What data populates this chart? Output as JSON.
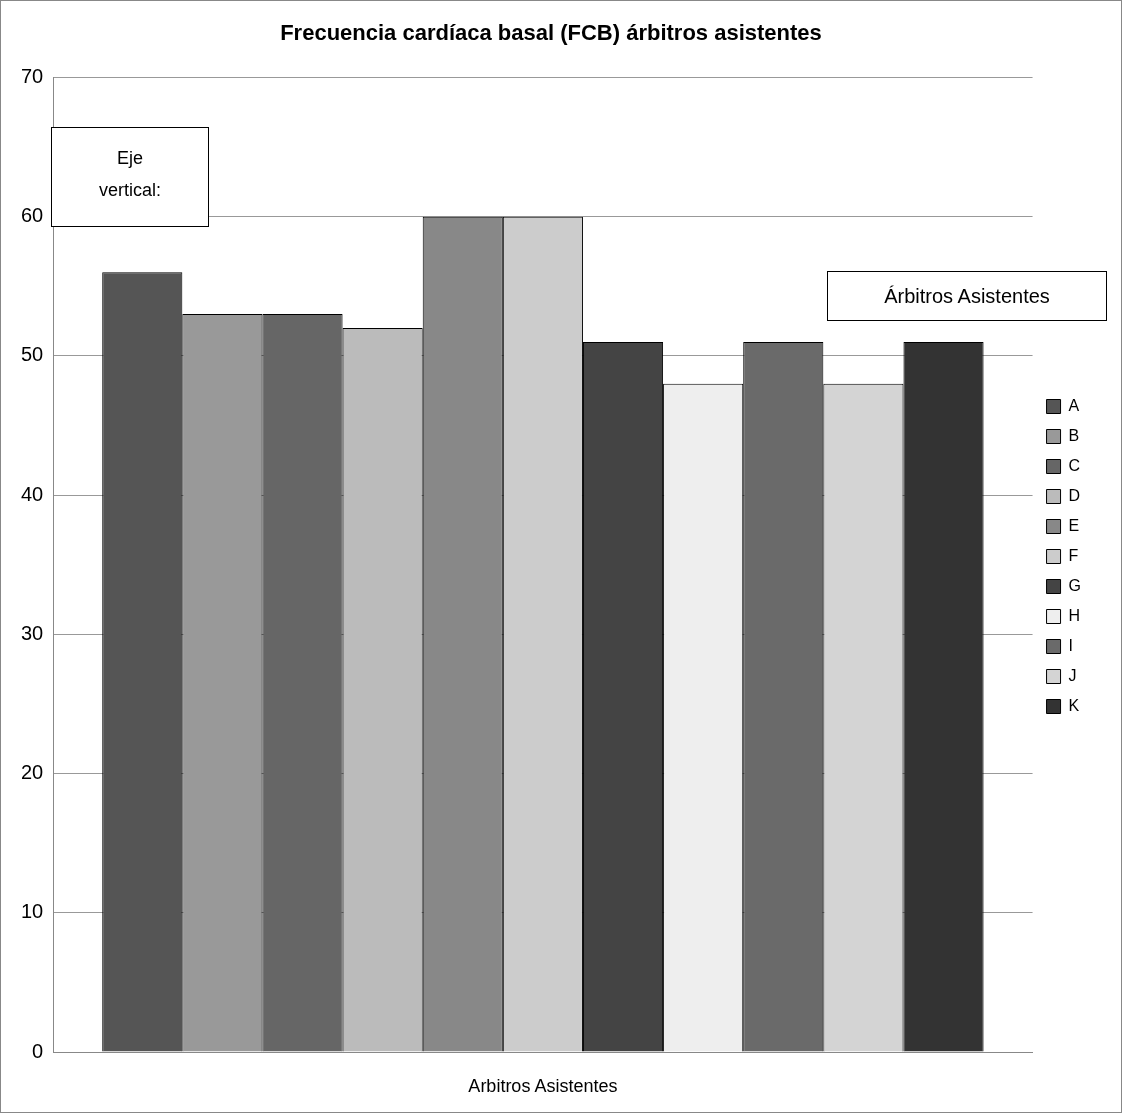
{
  "chart_data": {
    "type": "bar",
    "title": "Frecuencia cardíaca basal (FCB) árbitros asistentes",
    "xlabel": "Arbitros Asistentes",
    "legend_title": "Árbitros Asistentes",
    "annotations": [
      "Eje vertical:"
    ],
    "categories": [
      null
    ],
    "series": [
      {
        "name": "A",
        "color": "#555555",
        "values": [
          56
        ]
      },
      {
        "name": "B",
        "color": "#999999",
        "values": [
          53
        ]
      },
      {
        "name": "C",
        "color": "#666666",
        "values": [
          53
        ]
      },
      {
        "name": "D",
        "color": "#bbbbbb",
        "values": [
          52
        ]
      },
      {
        "name": "E",
        "color": "#888888",
        "values": [
          60
        ]
      },
      {
        "name": "F",
        "color": "#cccccc",
        "values": [
          60
        ]
      },
      {
        "name": "G",
        "color": "#444444",
        "values": [
          51
        ]
      },
      {
        "name": "H",
        "color": "#eeeeee",
        "values": [
          48
        ]
      },
      {
        "name": "I",
        "color": "#6a6a6a",
        "values": [
          51
        ]
      },
      {
        "name": "J",
        "color": "#d4d4d4",
        "values": [
          48
        ]
      },
      {
        "name": "K",
        "color": "#333333",
        "values": [
          51
        ]
      }
    ],
    "ylim": [
      0,
      70
    ],
    "yticks": [
      0,
      10,
      20,
      30,
      40,
      50,
      60,
      70
    ],
    "grid": "y",
    "legend": "right"
  }
}
